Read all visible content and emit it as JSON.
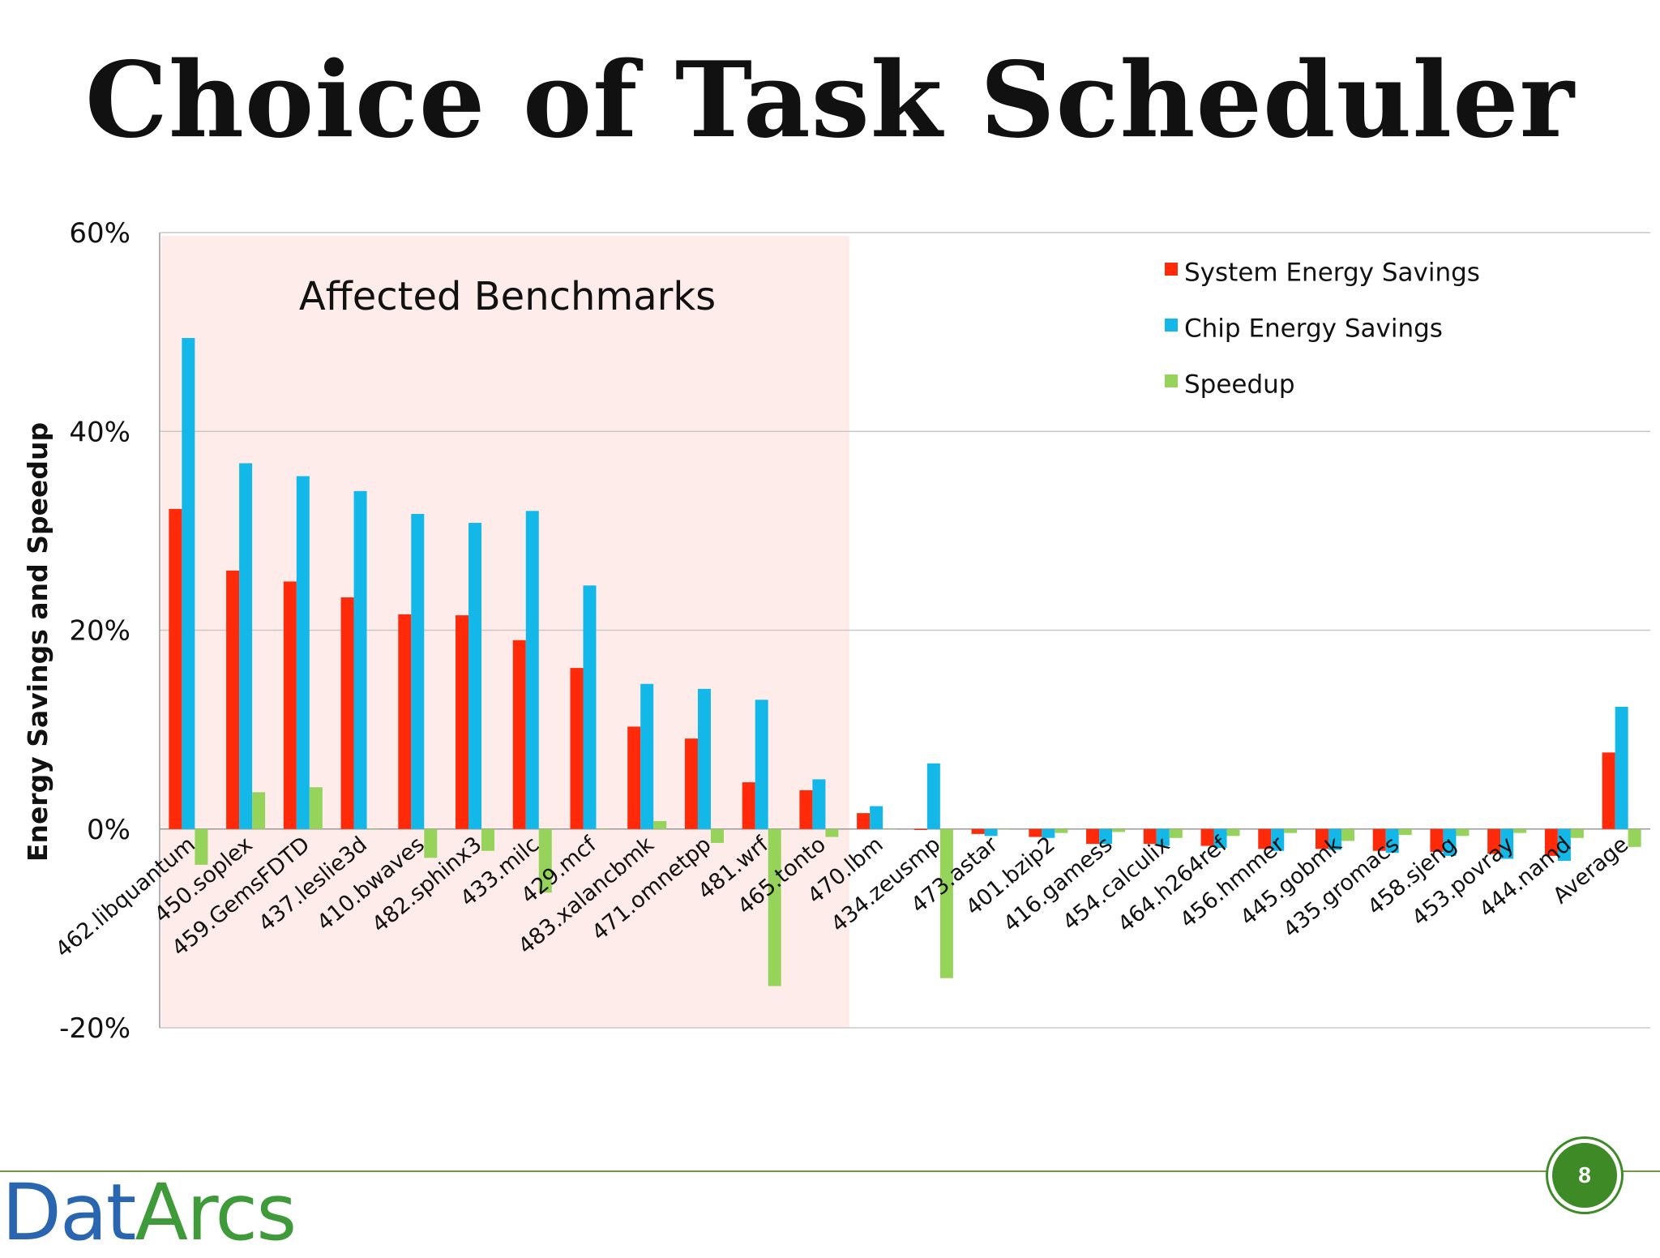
{
  "slide": {
    "title": "Choice of Task Scheduler",
    "page_number": "8"
  },
  "logo": {
    "part1": "Dat",
    "part2": "Arcs"
  },
  "colors": {
    "system": "#ff2a0a",
    "chip": "#14b8e8",
    "speedup": "#96d35a",
    "highlight": "#fdecea",
    "grid": "#c8c8c8",
    "accent": "#3d8a26"
  },
  "chart_data": {
    "type": "bar",
    "ylabel": "Energy Savings and Speedup",
    "ylim": [
      -0.2,
      0.6
    ],
    "yticks": [
      0.6,
      0.4,
      0.2,
      0,
      -0.2
    ],
    "ytick_labels": [
      "60%",
      "40%",
      "20%",
      "0%",
      "-20%"
    ],
    "highlight": {
      "label": "Affected Benchmarks",
      "categories_count": 12
    },
    "legend_position": "top-right",
    "categories": [
      "462.libquantum",
      "450.soplex",
      "459.GemsFDTD",
      "437.leslie3d",
      "410.bwaves",
      "482.sphinx3",
      "433.milc",
      "429.mcf",
      "483.xalancbmk",
      "471.omnetpp",
      "481.wrf",
      "465.tonto",
      "470.lbm",
      "434.zeusmp",
      "473.astar",
      "401.bzip2",
      "416.gamess",
      "454.calculix",
      "464.h264ref",
      "456.hmmer",
      "445.gobmk",
      "435.gromacs",
      "458.sjeng",
      "453.povray",
      "444.namd",
      "Average"
    ],
    "series": [
      {
        "name": "System Energy Savings",
        "values": [
          0.322,
          0.26,
          0.249,
          0.233,
          0.216,
          0.215,
          0.19,
          0.162,
          0.103,
          0.091,
          0.047,
          0.039,
          0.016,
          -0.001,
          -0.005,
          -0.008,
          -0.015,
          -0.015,
          -0.017,
          -0.02,
          -0.02,
          -0.022,
          -0.023,
          -0.025,
          -0.027,
          0.077
        ]
      },
      {
        "name": "Chip Energy Savings",
        "values": [
          0.494,
          0.368,
          0.355,
          0.34,
          0.317,
          0.308,
          0.32,
          0.245,
          0.146,
          0.141,
          0.13,
          0.05,
          0.023,
          0.066,
          -0.007,
          -0.009,
          -0.015,
          -0.017,
          -0.019,
          -0.022,
          -0.021,
          -0.024,
          -0.027,
          -0.03,
          -0.032,
          0.123
        ]
      },
      {
        "name": "Speedup",
        "values": [
          -0.036,
          0.037,
          0.042,
          0.0,
          -0.029,
          -0.022,
          -0.064,
          0.0,
          0.008,
          -0.014,
          -0.158,
          -0.008,
          0.0,
          -0.15,
          0.0,
          -0.004,
          -0.003,
          -0.009,
          -0.007,
          -0.004,
          -0.012,
          -0.006,
          -0.007,
          -0.004,
          -0.009,
          -0.018
        ]
      }
    ]
  }
}
